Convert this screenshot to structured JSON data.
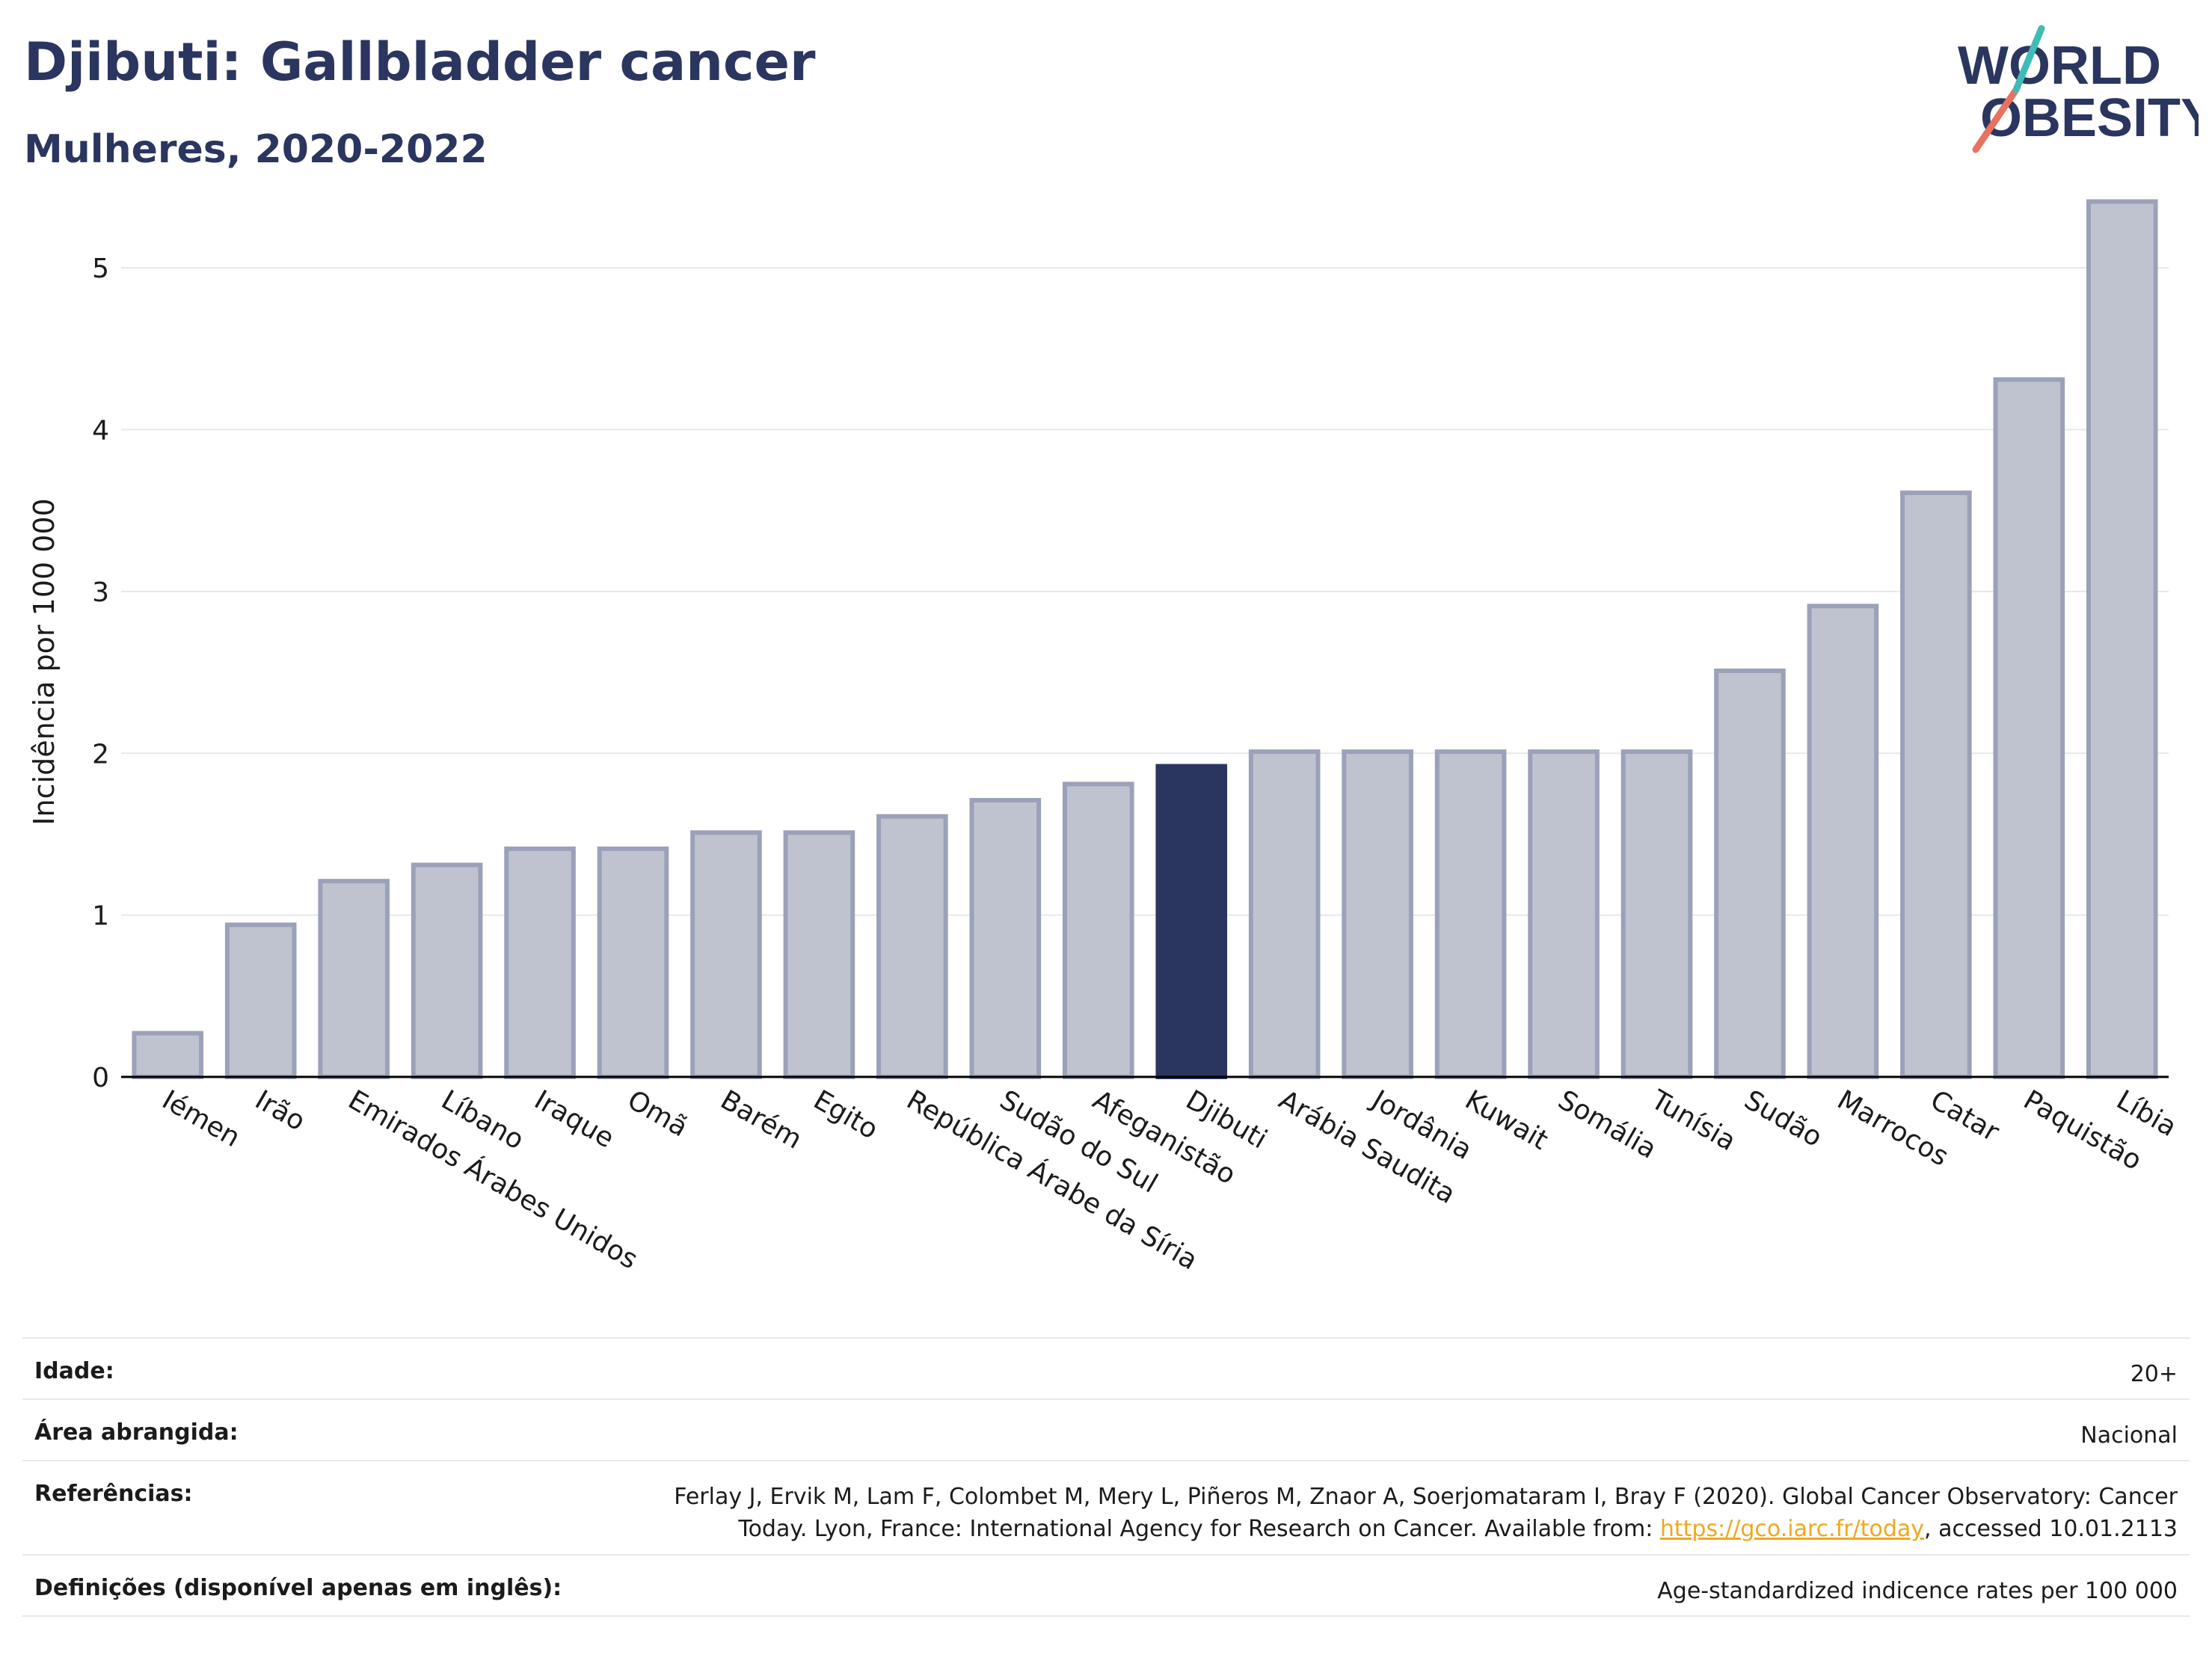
{
  "header": {
    "title": "Djibuti: Gallbladder cancer",
    "subtitle": "Mulheres, 2020-2022"
  },
  "logo": {
    "line1": "WORLD",
    "line2": "OBESITY"
  },
  "chart_data": {
    "type": "bar",
    "ylabel": "Incidência por 100 000",
    "xlabel": "",
    "ylim": [
      0,
      5.5
    ],
    "yticks": [
      0,
      1,
      2,
      3,
      4,
      5
    ],
    "grid": true,
    "highlight": "Djibuti",
    "colors": {
      "bar": "#bfc3cf",
      "bar_edge": "#9ba1b8",
      "highlight": "#2a365f",
      "grid": "#e6e8ee",
      "axis": "#000000"
    },
    "categories": [
      "Iémen",
      "Irão",
      "Emirados Árabes Unidos",
      "Líbano",
      "Iraque",
      "Omã",
      "Barém",
      "Egito",
      "República Árabe da Síria",
      "Sudão do Sul",
      "Afeganistão",
      "Djibuti",
      "Arábia Saudita",
      "Jordânia",
      "Kuwait",
      "Somália",
      "Tunísia",
      "Sudão",
      "Marrocos",
      "Catar",
      "Paquistão",
      "Líbia"
    ],
    "values": [
      0.27,
      0.94,
      1.21,
      1.31,
      1.41,
      1.41,
      1.51,
      1.51,
      1.61,
      1.71,
      1.81,
      1.92,
      2.01,
      2.01,
      2.01,
      2.01,
      2.01,
      2.51,
      2.91,
      3.61,
      4.31,
      5.41
    ]
  },
  "footer": {
    "rows": [
      {
        "label": "Idade:",
        "value": "20+"
      },
      {
        "label": "Área abrangida:",
        "value": "Nacional"
      },
      {
        "label": "Referências:",
        "value_pre": "Ferlay J, Ervik M, Lam F, Colombet M, Mery L, Piñeros M, Znaor A, Soerjomataram I, Bray F (2020). Global Cancer Observatory: Cancer Today. Lyon, France: International Agency for Research on Cancer. Available from: ",
        "link": "https://gco.iarc.fr/today",
        "value_post": ", accessed 10.01.2113"
      },
      {
        "label": "Definições (disponível apenas em inglês):",
        "value": "Age-standardized indicence rates per 100 000"
      }
    ]
  }
}
